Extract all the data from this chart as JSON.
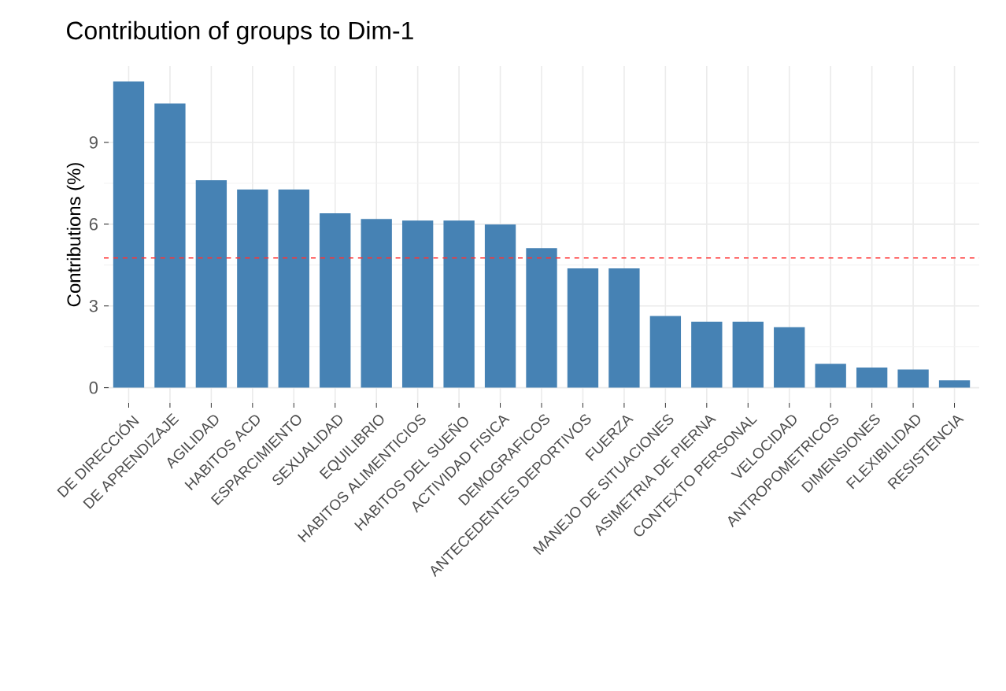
{
  "chart_data": {
    "type": "bar",
    "title": "Contribution of groups to Dim-1",
    "ylabel": "Contributions (%)",
    "categories": [
      "DE DIRECCIÓN",
      "DE APRENDIZAJE",
      "AGILIDAD",
      "HABITOS ACD",
      "ESPARCIMIENTO",
      "SEXUALIDAD",
      "EQUILIBRIO",
      "HABITOS ALIMENTICIOS",
      "HABITOS DEL SUEÑO",
      "ACTIVIDAD FISICA",
      "DEMOGRAFICOS",
      "ANTECEDENTES DEPORTIVOS",
      "FUERZA",
      "MANEJO DE SITUACIONES",
      "ASIMETRIA DE PIERNA",
      "CONTEXTO PERSONAL",
      "VELOCIDAD",
      "ANTROPOMETRICOS",
      "DIMENSIONES",
      "FLEXIBILIDAD",
      "RESISTENCIA"
    ],
    "values": [
      11.24,
      10.43,
      7.61,
      7.27,
      7.27,
      6.4,
      6.19,
      6.13,
      6.13,
      5.99,
      5.12,
      4.38,
      4.38,
      2.63,
      2.42,
      2.42,
      2.22,
      0.88,
      0.74,
      0.67,
      0.27
    ],
    "color": "#4682b4",
    "ylim": [
      -0.56,
      11.8
    ],
    "yticks": [
      0,
      3,
      6,
      9
    ],
    "grid": true,
    "ref_lines": [
      {
        "axis": "y",
        "value": 4.76,
        "color": "#ff3333",
        "line_style": "dashed"
      }
    ]
  }
}
